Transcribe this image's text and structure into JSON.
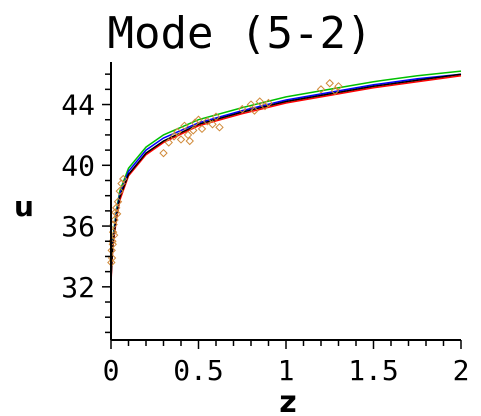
{
  "chart_data": {
    "type": "line",
    "title": "Mode (5-2)",
    "xlabel": "z",
    "ylabel": "u",
    "xlim": [
      0,
      2
    ],
    "ylim": [
      28.5,
      46.8
    ],
    "x_ticks": [
      {
        "value": 0,
        "label": "0"
      },
      {
        "value": 0.5,
        "label": "0.5"
      },
      {
        "value": 1,
        "label": "1"
      },
      {
        "value": 1.5,
        "label": "1.5"
      },
      {
        "value": 2,
        "label": "2"
      }
    ],
    "y_ticks": [
      {
        "value": 32,
        "label": "32"
      },
      {
        "value": 36,
        "label": "36"
      },
      {
        "value": 40,
        "label": "40"
      },
      {
        "value": 44,
        "label": "44"
      }
    ],
    "grid": false,
    "series": [
      {
        "type": "line",
        "color": "#00c000",
        "x": [
          0,
          0.01,
          0.03,
          0.05,
          0.1,
          0.2,
          0.3,
          0.5,
          0.75,
          1.0,
          1.25,
          1.5,
          1.75,
          2.0
        ],
        "y": [
          33.0,
          35.2,
          37.0,
          38.3,
          39.8,
          41.2,
          42.0,
          43.0,
          43.8,
          44.5,
          45.0,
          45.5,
          45.9,
          46.2
        ]
      },
      {
        "type": "line",
        "color": "#0000ff",
        "x": [
          0,
          0.01,
          0.03,
          0.05,
          0.1,
          0.2,
          0.3,
          0.5,
          0.75,
          1.0,
          1.25,
          1.5,
          1.75,
          2.0
        ],
        "y": [
          32.9,
          35.0,
          36.8,
          38.1,
          39.6,
          41.0,
          41.8,
          42.8,
          43.6,
          44.3,
          44.8,
          45.3,
          45.7,
          46.0
        ]
      },
      {
        "type": "line",
        "color": "#ff0000",
        "x": [
          0,
          0.01,
          0.03,
          0.05,
          0.1,
          0.2,
          0.3,
          0.5,
          0.75,
          1.0,
          1.25,
          1.5,
          1.75,
          2.0
        ],
        "y": [
          32.3,
          34.6,
          36.4,
          37.7,
          39.3,
          40.7,
          41.5,
          42.6,
          43.4,
          44.1,
          44.6,
          45.1,
          45.5,
          45.9
        ]
      },
      {
        "type": "line",
        "color": "#000000",
        "x": [
          0,
          0.01,
          0.03,
          0.05,
          0.1,
          0.2,
          0.3,
          0.5,
          0.75,
          1.0,
          1.25,
          1.5,
          1.75,
          2.0
        ],
        "y": [
          32.5,
          34.8,
          36.6,
          37.9,
          39.4,
          40.8,
          41.6,
          42.7,
          43.5,
          44.2,
          44.7,
          45.2,
          45.6,
          46.0
        ]
      },
      {
        "type": "scatter",
        "color": "#d08a3a",
        "marker": "diamond",
        "x": [
          0.002,
          0.004,
          0.006,
          0.008,
          0.01,
          0.012,
          0.015,
          0.018,
          0.02,
          0.025,
          0.03,
          0.035,
          0.04,
          0.05,
          0.06,
          0.07,
          0.3,
          0.33,
          0.36,
          0.38,
          0.4,
          0.42,
          0.44,
          0.45,
          0.47,
          0.48,
          0.5,
          0.52,
          0.55,
          0.58,
          0.6,
          0.62,
          0.75,
          0.8,
          0.82,
          0.85,
          0.88,
          0.9,
          1.2,
          1.25,
          1.28,
          1.3
        ],
        "y": [
          33.6,
          34.4,
          33.9,
          35.0,
          34.8,
          35.6,
          36.1,
          35.4,
          36.4,
          36.9,
          37.2,
          36.8,
          37.6,
          38.3,
          38.8,
          39.1,
          40.8,
          41.5,
          41.9,
          42.2,
          41.7,
          42.6,
          42.0,
          41.6,
          42.3,
          42.8,
          43.0,
          42.4,
          42.9,
          42.7,
          43.2,
          42.5,
          43.7,
          44.0,
          43.6,
          44.2,
          43.9,
          44.1,
          45.0,
          45.4,
          44.9,
          45.2
        ]
      }
    ]
  }
}
